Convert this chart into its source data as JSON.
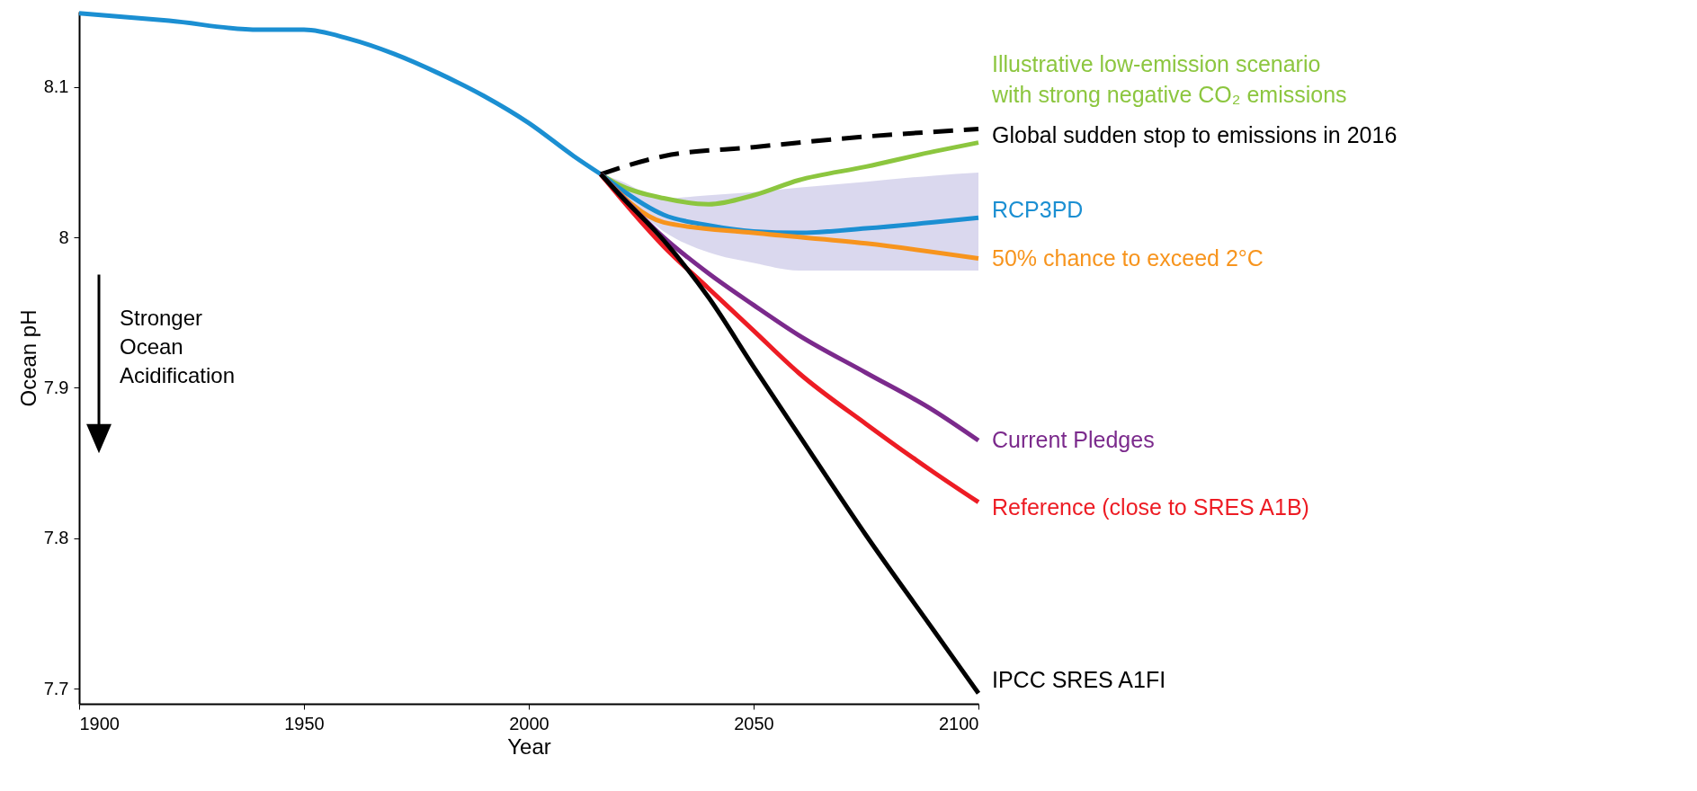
{
  "chart_data": {
    "type": "line",
    "xlabel": "Year",
    "ylabel": "Ocean pH",
    "xlim": [
      1900,
      2100
    ],
    "xticks": [
      1900,
      1950,
      2000,
      2050,
      2100
    ],
    "ylim": [
      7.69,
      8.15
    ],
    "yticks": [
      7.7,
      7.8,
      7.9,
      8,
      8.1
    ],
    "annotations": [
      "Stronger Ocean Acidification"
    ],
    "series": [
      {
        "color": "#1b8fd2",
        "x": [
          1900,
          1920,
          1940,
          1950,
          1960,
          1970,
          1980,
          1990,
          2000,
          2010,
          2016
        ],
        "values": [
          8.149,
          8.144,
          8.138,
          8.138,
          8.132,
          8.122,
          8.109,
          8.094,
          8.076,
          8.054,
          8.042
        ]
      },
      {
        "name": "Illustrative low-emission scenario with strong negative CO₂ emissions",
        "color": "#8cc63f",
        "x": [
          2016,
          2020,
          2030,
          2040,
          2050,
          2060,
          2075,
          2090,
          2100
        ],
        "values": [
          8.042,
          8.035,
          8.026,
          8.022,
          8.028,
          8.038,
          8.047,
          8.057,
          8.063
        ]
      },
      {
        "name": "Global sudden stop to emissions in 2016",
        "color": "#000000",
        "line_style": "dashed",
        "x": [
          2016,
          2030,
          2050,
          2075,
          2100
        ],
        "values": [
          8.042,
          8.054,
          8.06,
          8.067,
          8.072
        ]
      },
      {
        "name": "RCP3PD",
        "color": "#1b8fd2",
        "x": [
          2016,
          2020,
          2030,
          2040,
          2050,
          2060,
          2075,
          2090,
          2100
        ],
        "values": [
          8.042,
          8.033,
          8.015,
          8.008,
          8.004,
          8.003,
          8.006,
          8.01,
          8.013
        ],
        "lower": [
          8.042,
          8.03,
          8.004,
          7.99,
          7.983,
          7.978,
          7.978,
          7.978,
          7.978
        ],
        "upper": [
          8.042,
          8.038,
          8.026,
          8.028,
          8.03,
          8.033,
          8.037,
          8.041,
          8.043
        ]
      },
      {
        "name": "50% chance to exceed 2°C",
        "color": "#f7941d",
        "x": [
          2016,
          2030,
          2050,
          2075,
          2100
        ],
        "values": [
          8.042,
          8.01,
          8.003,
          7.996,
          7.986
        ]
      },
      {
        "name": "Current Pledges",
        "color": "#7b2a8c",
        "x": [
          2016,
          2030,
          2040,
          2050,
          2060,
          2075,
          2090,
          2100
        ],
        "values": [
          8.042,
          8.0,
          7.976,
          7.955,
          7.935,
          7.91,
          7.885,
          7.865
        ]
      },
      {
        "name": "Reference (close to SRES A1B)",
        "color": "#ed1c24",
        "x": [
          2016,
          2030,
          2040,
          2050,
          2060,
          2075,
          2090,
          2100
        ],
        "values": [
          8.042,
          7.994,
          7.966,
          7.938,
          7.91,
          7.876,
          7.844,
          7.824
        ]
      },
      {
        "name": "IPCC SRES A1FI",
        "color": "#000000",
        "x": [
          2016,
          2020,
          2030,
          2040,
          2050,
          2060,
          2075,
          2090,
          2100
        ],
        "values": [
          8.042,
          8.029,
          7.998,
          7.96,
          7.914,
          7.869,
          7.802,
          7.739,
          7.697
        ]
      }
    ]
  }
}
